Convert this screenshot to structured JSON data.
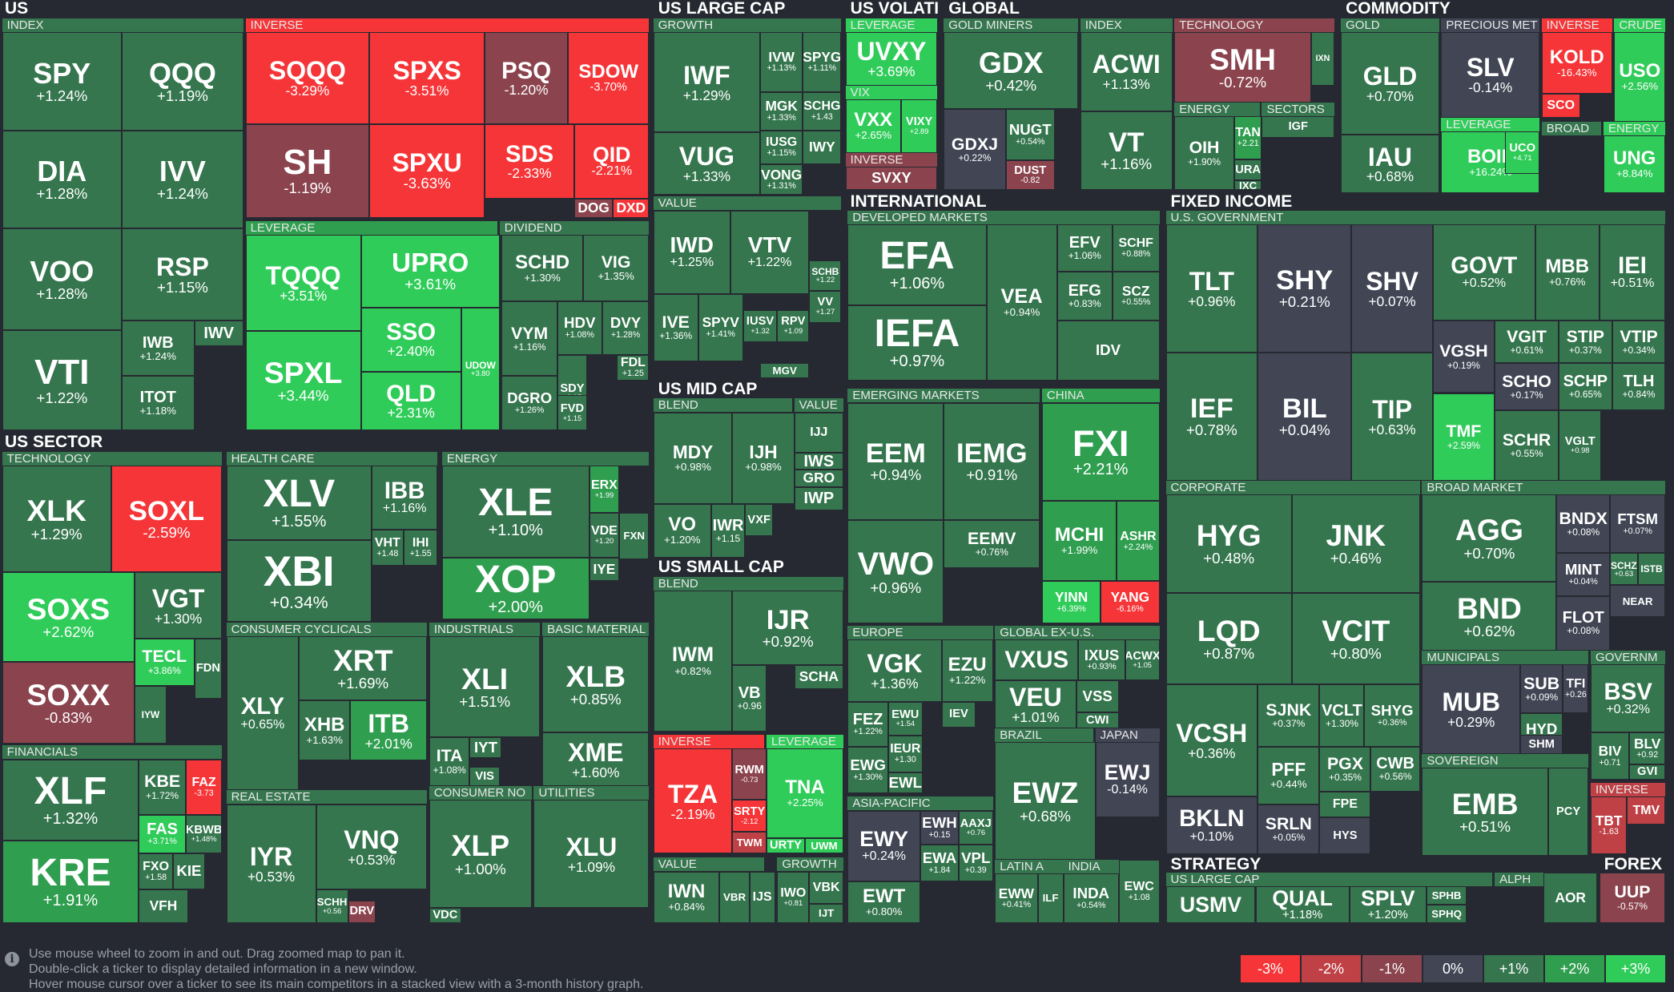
{
  "colors": {
    "n3": "#f63538",
    "n2": "#bf4045",
    "n1": "#8b444e",
    "z0": "#414554",
    "p1": "#35764e",
    "p2": "#2f9e4f",
    "p3": "#30cc5a"
  },
  "sections": {
    "us": "US",
    "us_large_cap": "US LARGE CAP",
    "us_volati": "US VOLATI",
    "global": "GLOBAL",
    "commodity": "COMMODITY",
    "international": "INTERNATIONAL",
    "fixed_income": "FIXED INCOME",
    "us_mid_cap": "US MID CAP",
    "us_small_cap": "US SMALL CAP",
    "us_sector": "US SECTOR",
    "strategy": "STRATEGY",
    "forex": "FOREX"
  },
  "groups": {
    "index": "INDEX",
    "inverse": "INVERSE",
    "leverage": "LEVERAGE",
    "dividend": "DIVIDEND",
    "growth": "GROWTH",
    "value": "VALUE",
    "vix": "VIX",
    "gold_miners": "GOLD MINERS",
    "technology": "TECHNOLOGY",
    "energy": "ENERGY",
    "sectors": "SECTORS",
    "gold": "GOLD",
    "precious_met": "PRECIOUS MET",
    "crude": "CRUDE",
    "broad": "BROAD",
    "developed_markets": "DEVELOPED MARKETS",
    "us_government": "U.S. GOVERNMENT",
    "blend": "BLEND",
    "emerging_markets": "EMERGING MARKETS",
    "china": "CHINA",
    "corporate": "CORPORATE",
    "broad_market": "BROAD MARKET",
    "health_care": "HEALTH CARE",
    "consumer_cyclicals": "CONSUMER CYCLICALS",
    "industrials": "INDUSTRIALS",
    "basic_material": "BASIC MATERIAL",
    "real_estate": "REAL ESTATE",
    "consumer_no": "CONSUMER NO",
    "utilities": "UTILITIES",
    "financials": "FINANCIALS",
    "europe": "EUROPE",
    "global_ex_us": "GLOBAL EX-U.S.",
    "brazil": "BRAZIL",
    "japan": "JAPAN",
    "asia_pacific": "ASIA-PACIFIC",
    "latin_a": "LATIN A",
    "india": "INDIA",
    "municipals": "MUNICIPALS",
    "governm": "GOVERNM",
    "sovereign": "SOVEREIGN",
    "us_large_cap": "US LARGE CAP",
    "alph": "ALPH"
  },
  "tiles": [
    {
      "t": "SPY",
      "c": "+1.24%",
      "k": "p1"
    },
    {
      "t": "QQQ",
      "c": "+1.19%",
      "k": "p1"
    },
    {
      "t": "DIA",
      "c": "+1.28%",
      "k": "p1"
    },
    {
      "t": "IVV",
      "c": "+1.24%",
      "k": "p1"
    },
    {
      "t": "VOO",
      "c": "+1.28%",
      "k": "p1"
    },
    {
      "t": "RSP",
      "c": "+1.15%",
      "k": "p1"
    },
    {
      "t": "VTI",
      "c": "+1.22%",
      "k": "p1"
    },
    {
      "t": "IWB",
      "c": "+1.24%",
      "k": "p1"
    },
    {
      "t": "IWV",
      "c": "",
      "k": "p1"
    },
    {
      "t": "ITOT",
      "c": "+1.18%",
      "k": "p1"
    },
    {
      "t": "SQQQ",
      "c": "-3.29%",
      "k": "n3"
    },
    {
      "t": "SPXS",
      "c": "-3.51%",
      "k": "n3"
    },
    {
      "t": "PSQ",
      "c": "-1.20%",
      "k": "n1"
    },
    {
      "t": "SDOW",
      "c": "-3.70%",
      "k": "n3"
    },
    {
      "t": "SH",
      "c": "-1.19%",
      "k": "n1"
    },
    {
      "t": "SPXU",
      "c": "-3.63%",
      "k": "n3"
    },
    {
      "t": "SDS",
      "c": "-2.33%",
      "k": "n3"
    },
    {
      "t": "QID",
      "c": "-2.21%",
      "k": "n3"
    },
    {
      "t": "DOG",
      "c": "",
      "k": "n1"
    },
    {
      "t": "DXD",
      "c": "",
      "k": "n3"
    },
    {
      "t": "TQQQ",
      "c": "+3.51%",
      "k": "p3"
    },
    {
      "t": "UPRO",
      "c": "+3.61%",
      "k": "p3"
    },
    {
      "t": "SSO",
      "c": "+2.40%",
      "k": "p3"
    },
    {
      "t": "SPXL",
      "c": "+3.44%",
      "k": "p3"
    },
    {
      "t": "QLD",
      "c": "+2.31%",
      "k": "p3"
    },
    {
      "t": "UDOW",
      "c": "+3.80",
      "k": "p3"
    },
    {
      "t": "SCHD",
      "c": "+1.30%",
      "k": "p1"
    },
    {
      "t": "VIG",
      "c": "+1.35%",
      "k": "p1"
    },
    {
      "t": "VYM",
      "c": "+1.16%",
      "k": "p1"
    },
    {
      "t": "HDV",
      "c": "+1.08%",
      "k": "p1"
    },
    {
      "t": "DVY",
      "c": "+1.28%",
      "k": "p1"
    },
    {
      "t": "SDY",
      "c": "+1.05",
      "k": "p1"
    },
    {
      "t": "FDL",
      "c": "+1.25",
      "k": "p1"
    },
    {
      "t": "DGRO",
      "c": "+1.26%",
      "k": "p1"
    },
    {
      "t": "FVD",
      "c": "+1.15",
      "k": "p1"
    },
    {
      "t": "IWF",
      "c": "+1.29%",
      "k": "p1"
    },
    {
      "t": "IVW",
      "c": "+1.13%",
      "k": "p1"
    },
    {
      "t": "SPYG",
      "c": "+1.11%",
      "k": "p1"
    },
    {
      "t": "MGK",
      "c": "+1.33%",
      "k": "p1"
    },
    {
      "t": "SCHG",
      "c": "+1.43",
      "k": "p1"
    },
    {
      "t": "VUG",
      "c": "+1.33%",
      "k": "p1"
    },
    {
      "t": "IUSG",
      "c": "+1.15%",
      "k": "p1"
    },
    {
      "t": "IWY",
      "c": "",
      "k": "p1"
    },
    {
      "t": "VONG",
      "c": "+1.31%",
      "k": "p1"
    },
    {
      "t": "IWD",
      "c": "+1.25%",
      "k": "p1"
    },
    {
      "t": "VTV",
      "c": "+1.22%",
      "k": "p1"
    },
    {
      "t": "SCHB",
      "c": "+1.22",
      "k": "p1"
    },
    {
      "t": "VV",
      "c": "+1.27",
      "k": "p1"
    },
    {
      "t": "IVE",
      "c": "+1.36%",
      "k": "p1"
    },
    {
      "t": "SPYV",
      "c": "+1.41%",
      "k": "p1"
    },
    {
      "t": "IUSV",
      "c": "+1.32",
      "k": "p1"
    },
    {
      "t": "RPV",
      "c": "+1.09",
      "k": "p1"
    },
    {
      "t": "MGV",
      "c": "",
      "k": "p1"
    },
    {
      "t": "UVXY",
      "c": "+3.69%",
      "k": "p3"
    },
    {
      "t": "VXX",
      "c": "+2.65%",
      "k": "p3"
    },
    {
      "t": "VIXY",
      "c": "+2.89",
      "k": "p3"
    },
    {
      "t": "SVXY",
      "c": "",
      "k": "n1"
    },
    {
      "t": "GDX",
      "c": "+0.42%",
      "k": "p1"
    },
    {
      "t": "GDXJ",
      "c": "+0.22%",
      "k": "z0"
    },
    {
      "t": "NUGT",
      "c": "+0.54%",
      "k": "p1"
    },
    {
      "t": "DUST",
      "c": "-0.82",
      "k": "n1"
    },
    {
      "t": "ACWI",
      "c": "+1.13%",
      "k": "p1"
    },
    {
      "t": "VT",
      "c": "+1.16%",
      "k": "p1"
    },
    {
      "t": "SMH",
      "c": "-0.72%",
      "k": "n1"
    },
    {
      "t": "IXN",
      "c": "",
      "k": "p1"
    },
    {
      "t": "OIH",
      "c": "+1.90%",
      "k": "p1"
    },
    {
      "t": "TAN",
      "c": "+2.21",
      "k": "p2"
    },
    {
      "t": "IGF",
      "c": "",
      "k": "p1"
    },
    {
      "t": "URA",
      "c": "",
      "k": "p1"
    },
    {
      "t": "IXC",
      "c": "",
      "k": "p1"
    },
    {
      "t": "GLD",
      "c": "+0.70%",
      "k": "p1"
    },
    {
      "t": "IAU",
      "c": "+0.68%",
      "k": "p1"
    },
    {
      "t": "SLV",
      "c": "-0.14%",
      "k": "z0"
    },
    {
      "t": "KOLD",
      "c": "-16.43%",
      "k": "n3"
    },
    {
      "t": "SCO",
      "c": "",
      "k": "n3"
    },
    {
      "t": "USO",
      "c": "+2.56%",
      "k": "p3"
    },
    {
      "t": "BOIL",
      "c": "+16.24%",
      "k": "p3"
    },
    {
      "t": "UCO",
      "c": "+4.71",
      "k": "p3"
    },
    {
      "t": "UNG",
      "c": "+8.84%",
      "k": "p3"
    },
    {
      "t": "EFA",
      "c": "+1.06%",
      "k": "p1"
    },
    {
      "t": "EFV",
      "c": "+1.06%",
      "k": "p1"
    },
    {
      "t": "SCHF",
      "c": "+0.88%",
      "k": "p1"
    },
    {
      "t": "VEA",
      "c": "+0.94%",
      "k": "p1"
    },
    {
      "t": "EFG",
      "c": "+0.83%",
      "k": "p1"
    },
    {
      "t": "SCZ",
      "c": "+0.55%",
      "k": "p1"
    },
    {
      "t": "IEFA",
      "c": "+0.97%",
      "k": "p1"
    },
    {
      "t": "IDV",
      "c": "",
      "k": "p1"
    },
    {
      "t": "EEM",
      "c": "+0.94%",
      "k": "p1"
    },
    {
      "t": "IEMG",
      "c": "+0.91%",
      "k": "p1"
    },
    {
      "t": "EEMV",
      "c": "+0.76%",
      "k": "p1"
    },
    {
      "t": "VWO",
      "c": "+0.96%",
      "k": "p1"
    },
    {
      "t": "FXI",
      "c": "+2.21%",
      "k": "p2"
    },
    {
      "t": "MCHI",
      "c": "+1.99%",
      "k": "p2"
    },
    {
      "t": "ASHR",
      "c": "+2.24%",
      "k": "p2"
    },
    {
      "t": "YINN",
      "c": "+6.39%",
      "k": "p3"
    },
    {
      "t": "YANG",
      "c": "-6.16%",
      "k": "n3"
    },
    {
      "t": "TLT",
      "c": "+0.96%",
      "k": "p1"
    },
    {
      "t": "SHY",
      "c": "+0.21%",
      "k": "z0"
    },
    {
      "t": "SHV",
      "c": "+0.07%",
      "k": "z0"
    },
    {
      "t": "GOVT",
      "c": "+0.52%",
      "k": "p1"
    },
    {
      "t": "MBB",
      "c": "+0.76%",
      "k": "p1"
    },
    {
      "t": "IEI",
      "c": "+0.51%",
      "k": "p1"
    },
    {
      "t": "VGIT",
      "c": "+0.61%",
      "k": "p1"
    },
    {
      "t": "STIP",
      "c": "+0.37%",
      "k": "p1"
    },
    {
      "t": "VTIP",
      "c": "+0.34%",
      "k": "p1"
    },
    {
      "t": "VGSH",
      "c": "+0.19%",
      "k": "z0"
    },
    {
      "t": "IEF",
      "c": "+0.78%",
      "k": "p1"
    },
    {
      "t": "BIL",
      "c": "+0.04%",
      "k": "z0"
    },
    {
      "t": "TIP",
      "c": "+0.63%",
      "k": "p1"
    },
    {
      "t": "SCHO",
      "c": "+0.17%",
      "k": "z0"
    },
    {
      "t": "SCHP",
      "c": "+0.65%",
      "k": "p1"
    },
    {
      "t": "TLH",
      "c": "+0.84%",
      "k": "p1"
    },
    {
      "t": "TMF",
      "c": "+2.59%",
      "k": "p3"
    },
    {
      "t": "SCHR",
      "c": "+0.55%",
      "k": "p1"
    },
    {
      "t": "VGLT",
      "c": "+0.98",
      "k": "p1"
    },
    {
      "t": "HYG",
      "c": "+0.48%",
      "k": "p1"
    },
    {
      "t": "JNK",
      "c": "+0.46%",
      "k": "p1"
    },
    {
      "t": "LQD",
      "c": "+0.87%",
      "k": "p1"
    },
    {
      "t": "VCIT",
      "c": "+0.80%",
      "k": "p1"
    },
    {
      "t": "VCSH",
      "c": "+0.36%",
      "k": "p1"
    },
    {
      "t": "SJNK",
      "c": "+0.37%",
      "k": "p1"
    },
    {
      "t": "VCLT",
      "c": "+1.30%",
      "k": "p1"
    },
    {
      "t": "SHYG",
      "c": "+0.36%",
      "k": "p1"
    },
    {
      "t": "PFF",
      "c": "+0.44%",
      "k": "p1"
    },
    {
      "t": "PGX",
      "c": "+0.35%",
      "k": "p1"
    },
    {
      "t": "CWB",
      "c": "+0.56%",
      "k": "p1"
    },
    {
      "t": "FPE",
      "c": "",
      "k": "p1"
    },
    {
      "t": "BKLN",
      "c": "+0.10%",
      "k": "z0"
    },
    {
      "t": "SRLN",
      "c": "+0.05%",
      "k": "z0"
    },
    {
      "t": "HYS",
      "c": "",
      "k": "z0"
    },
    {
      "t": "AGG",
      "c": "+0.70%",
      "k": "p1"
    },
    {
      "t": "BNDX",
      "c": "+0.08%",
      "k": "z0"
    },
    {
      "t": "FTSM",
      "c": "+0.07%",
      "k": "z0"
    },
    {
      "t": "MINT",
      "c": "+0.04%",
      "k": "z0"
    },
    {
      "t": "SCHZ",
      "c": "+0.63",
      "k": "p1"
    },
    {
      "t": "ISTB",
      "c": "",
      "k": "p1"
    },
    {
      "t": "NEAR",
      "c": "",
      "k": "z0"
    },
    {
      "t": "BND",
      "c": "+0.62%",
      "k": "p1"
    },
    {
      "t": "FLOT",
      "c": "+0.08%",
      "k": "z0"
    },
    {
      "t": "MUB",
      "c": "+0.29%",
      "k": "z0"
    },
    {
      "t": "SUB",
      "c": "+0.09%",
      "k": "z0"
    },
    {
      "t": "TFI",
      "c": "+0.26",
      "k": "z0"
    },
    {
      "t": "HYD",
      "c": "+0.61",
      "k": "p1"
    },
    {
      "t": "SHM",
      "c": "",
      "k": "z0"
    },
    {
      "t": "BSV",
      "c": "+0.32%",
      "k": "p1"
    },
    {
      "t": "BIV",
      "c": "+0.71",
      "k": "p1"
    },
    {
      "t": "BLV",
      "c": "+0.92",
      "k": "p1"
    },
    {
      "t": "GVI",
      "c": "",
      "k": "p1"
    },
    {
      "t": "EMB",
      "c": "+0.51%",
      "k": "p1"
    },
    {
      "t": "PCY",
      "c": "",
      "k": "p1"
    },
    {
      "t": "TBT",
      "c": "-1.63",
      "k": "n2"
    },
    {
      "t": "TMV",
      "c": "",
      "k": "n2"
    },
    {
      "t": "MDY",
      "c": "+0.98%",
      "k": "p1"
    },
    {
      "t": "IJH",
      "c": "+0.98%",
      "k": "p1"
    },
    {
      "t": "IJJ",
      "c": "",
      "k": "p1"
    },
    {
      "t": "IWS",
      "c": "",
      "k": "p1"
    },
    {
      "t": "GRO",
      "c": "",
      "k": "p1"
    },
    {
      "t": "IWP",
      "c": "",
      "k": "p1"
    },
    {
      "t": "VO",
      "c": "+1.20%",
      "k": "p1"
    },
    {
      "t": "IWR",
      "c": "+1.15",
      "k": "p1"
    },
    {
      "t": "VXF",
      "c": "",
      "k": "p1"
    },
    {
      "t": "IWM",
      "c": "+0.82%",
      "k": "p1"
    },
    {
      "t": "IJR",
      "c": "+0.92%",
      "k": "p1"
    },
    {
      "t": "SCHA",
      "c": "",
      "k": "p1"
    },
    {
      "t": "VB",
      "c": "+0.96",
      "k": "p1"
    },
    {
      "t": "TZA",
      "c": "-2.19%",
      "k": "n3"
    },
    {
      "t": "RWM",
      "c": "-0.73",
      "k": "n1"
    },
    {
      "t": "SRTY",
      "c": "-2.12",
      "k": "n3"
    },
    {
      "t": "TWM",
      "c": "",
      "k": "n2"
    },
    {
      "t": "TNA",
      "c": "+2.25%",
      "k": "p3"
    },
    {
      "t": "URTY",
      "c": "",
      "k": "p3"
    },
    {
      "t": "UWM",
      "c": "",
      "k": "p3"
    },
    {
      "t": "IWN",
      "c": "+0.84%",
      "k": "p1"
    },
    {
      "t": "VBR",
      "c": "",
      "k": "p1"
    },
    {
      "t": "IJS",
      "c": "",
      "k": "p1"
    },
    {
      "t": "IWO",
      "c": "+0.81",
      "k": "p1"
    },
    {
      "t": "VBK",
      "c": "",
      "k": "p1"
    },
    {
      "t": "IJT",
      "c": "",
      "k": "p1"
    },
    {
      "t": "XLK",
      "c": "+1.29%",
      "k": "p1"
    },
    {
      "t": "SOXL",
      "c": "-2.59%",
      "k": "n3"
    },
    {
      "t": "SOXS",
      "c": "+2.62%",
      "k": "p3"
    },
    {
      "t": "VGT",
      "c": "+1.30%",
      "k": "p1"
    },
    {
      "t": "TECL",
      "c": "+3.86%",
      "k": "p3"
    },
    {
      "t": "FDN",
      "c": "",
      "k": "p1"
    },
    {
      "t": "SOXX",
      "c": "-0.83%",
      "k": "n1"
    },
    {
      "t": "IYW",
      "c": "",
      "k": "p1"
    },
    {
      "t": "XLV",
      "c": "+1.55%",
      "k": "p1"
    },
    {
      "t": "IBB",
      "c": "+1.16%",
      "k": "p1"
    },
    {
      "t": "XBI",
      "c": "+0.34%",
      "k": "p1"
    },
    {
      "t": "VHT",
      "c": "+1.48",
      "k": "p1"
    },
    {
      "t": "IHI",
      "c": "+1.55",
      "k": "p1"
    },
    {
      "t": "XLE",
      "c": "+1.10%",
      "k": "p1"
    },
    {
      "t": "ERX",
      "c": "+1.99",
      "k": "p2"
    },
    {
      "t": "VDE",
      "c": "+1.20",
      "k": "p1"
    },
    {
      "t": "FXN",
      "c": "",
      "k": "p1"
    },
    {
      "t": "XOP",
      "c": "+2.00%",
      "k": "p2"
    },
    {
      "t": "IYE",
      "c": "",
      "k": "p1"
    },
    {
      "t": "XLY",
      "c": "+0.65%",
      "k": "p1"
    },
    {
      "t": "XRT",
      "c": "+1.69%",
      "k": "p1"
    },
    {
      "t": "XHB",
      "c": "+1.63%",
      "k": "p1"
    },
    {
      "t": "ITB",
      "c": "+2.01%",
      "k": "p2"
    },
    {
      "t": "XLI",
      "c": "+1.51%",
      "k": "p1"
    },
    {
      "t": "ITA",
      "c": "+1.08%",
      "k": "p1"
    },
    {
      "t": "IYT",
      "c": "",
      "k": "p1"
    },
    {
      "t": "VIS",
      "c": "",
      "k": "p1"
    },
    {
      "t": "XLB",
      "c": "+0.85%",
      "k": "p1"
    },
    {
      "t": "XME",
      "c": "+1.60%",
      "k": "p1"
    },
    {
      "t": "IYR",
      "c": "+0.53%",
      "k": "p1"
    },
    {
      "t": "VNQ",
      "c": "+0.53%",
      "k": "p1"
    },
    {
      "t": "SCHH",
      "c": "+0.56",
      "k": "p1"
    },
    {
      "t": "DRV",
      "c": "",
      "k": "n1"
    },
    {
      "t": "XLP",
      "c": "+1.00%",
      "k": "p1"
    },
    {
      "t": "VDC",
      "c": "",
      "k": "p1"
    },
    {
      "t": "XLU",
      "c": "+1.09%",
      "k": "p1"
    },
    {
      "t": "XLF",
      "c": "+1.32%",
      "k": "p1"
    },
    {
      "t": "KBE",
      "c": "+1.72%",
      "k": "p1"
    },
    {
      "t": "FAZ",
      "c": "-3.73",
      "k": "n3"
    },
    {
      "t": "FAS",
      "c": "+3.71%",
      "k": "p3"
    },
    {
      "t": "KBWB",
      "c": "+1.48%",
      "k": "p1"
    },
    {
      "t": "KRE",
      "c": "+1.91%",
      "k": "p2"
    },
    {
      "t": "FXO",
      "c": "+1.58",
      "k": "p1"
    },
    {
      "t": "KIE",
      "c": "",
      "k": "p1"
    },
    {
      "t": "VFH",
      "c": "",
      "k": "p1"
    },
    {
      "t": "VGK",
      "c": "+1.36%",
      "k": "p1"
    },
    {
      "t": "EZU",
      "c": "+1.22%",
      "k": "p1"
    },
    {
      "t": "FEZ",
      "c": "+1.22%",
      "k": "p1"
    },
    {
      "t": "EWU",
      "c": "+1.54",
      "k": "p1"
    },
    {
      "t": "IEV",
      "c": "",
      "k": "p1"
    },
    {
      "t": "EWG",
      "c": "+1.30%",
      "k": "p1"
    },
    {
      "t": "IEUR",
      "c": "+1.30",
      "k": "p1"
    },
    {
      "t": "EWL",
      "c": "",
      "k": "p1"
    },
    {
      "t": "VXUS",
      "c": "",
      "k": "p1"
    },
    {
      "t": "IXUS",
      "c": "+0.93%",
      "k": "p1"
    },
    {
      "t": "ACWX",
      "c": "+1.05",
      "k": "p1"
    },
    {
      "t": "VEU",
      "c": "+1.01%",
      "k": "p1"
    },
    {
      "t": "VSS",
      "c": "",
      "k": "p1"
    },
    {
      "t": "CWI",
      "c": "",
      "k": "p1"
    },
    {
      "t": "EWZ",
      "c": "+0.68%",
      "k": "p1"
    },
    {
      "t": "EWJ",
      "c": "-0.14%",
      "k": "z0"
    },
    {
      "t": "EWY",
      "c": "+0.24%",
      "k": "z0"
    },
    {
      "t": "EWH",
      "c": "+0.15",
      "k": "z0"
    },
    {
      "t": "AAXJ",
      "c": "+0.76",
      "k": "p1"
    },
    {
      "t": "EWA",
      "c": "+1.84",
      "k": "p1"
    },
    {
      "t": "VPL",
      "c": "+0.39",
      "k": "p1"
    },
    {
      "t": "EWT",
      "c": "+0.80%",
      "k": "p1"
    },
    {
      "t": "EWW",
      "c": "+0.41%",
      "k": "p1"
    },
    {
      "t": "ILF",
      "c": "",
      "k": "p1"
    },
    {
      "t": "INDA",
      "c": "+0.54%",
      "k": "p1"
    },
    {
      "t": "EWC",
      "c": "+1.08",
      "k": "p1"
    },
    {
      "t": "USMV",
      "c": "",
      "k": "p1"
    },
    {
      "t": "QUAL",
      "c": "+1.18%",
      "k": "p1"
    },
    {
      "t": "SPLV",
      "c": "+1.20%",
      "k": "p1"
    },
    {
      "t": "SPHB",
      "c": "",
      "k": "p1"
    },
    {
      "t": "SPHQ",
      "c": "",
      "k": "p1"
    },
    {
      "t": "AOR",
      "c": "",
      "k": "p1"
    },
    {
      "t": "UUP",
      "c": "-0.57%",
      "k": "n1"
    }
  ],
  "footer": {
    "hint1": "Use mouse wheel to zoom in and out. Drag zoomed map to pan it.",
    "hint2": "Double-click a ticker to display detailed information in a new window.",
    "hint3": "Hover mouse cursor over a ticker to see its main competitors in a stacked view with a 3-month history graph.",
    "info_icon": "info-icon",
    "legend": [
      {
        "label": "-3%",
        "k": "n3"
      },
      {
        "label": "-2%",
        "k": "n2"
      },
      {
        "label": "-1%",
        "k": "n1"
      },
      {
        "label": "0%",
        "k": "z0"
      },
      {
        "label": "+1%",
        "k": "p1"
      },
      {
        "label": "+2%",
        "k": "p2"
      },
      {
        "label": "+3%",
        "k": "p3"
      }
    ]
  }
}
